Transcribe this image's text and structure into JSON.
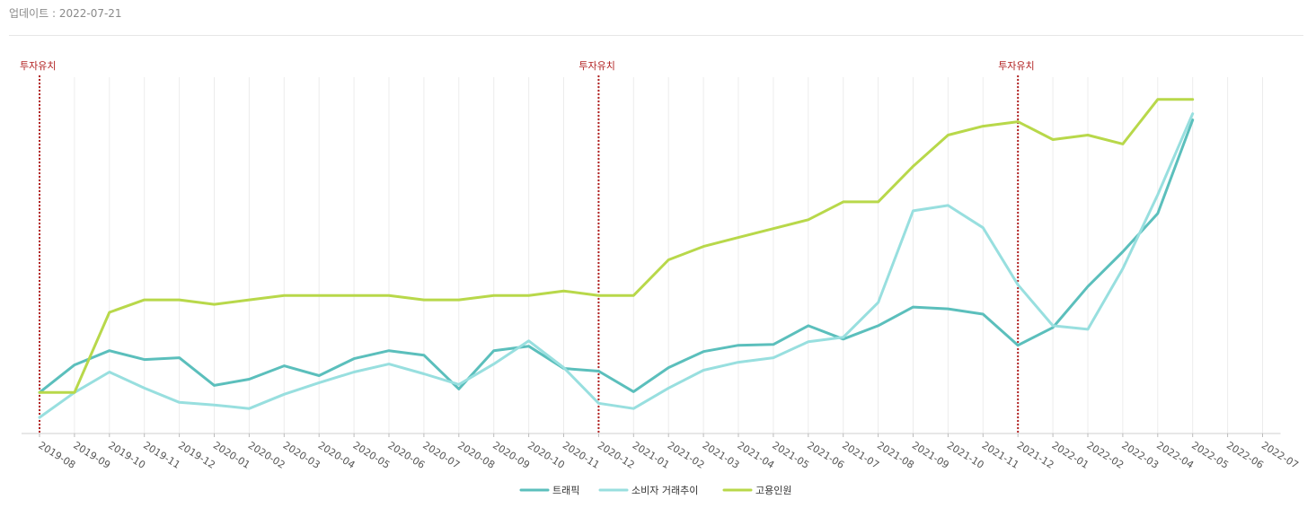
{
  "header": {
    "update_label": "업데이트 : 2022-07-21"
  },
  "chart_data": {
    "type": "line",
    "categories": [
      "2019-08",
      "2019-09",
      "2019-10",
      "2019-11",
      "2019-12",
      "2020-01",
      "2020-02",
      "2020-03",
      "2020-04",
      "2020-05",
      "2020-06",
      "2020-07",
      "2020-08",
      "2020-09",
      "2020-10",
      "2020-11",
      "2020-12",
      "2021-01",
      "2021-02",
      "2021-03",
      "2021-04",
      "2021-05",
      "2021-06",
      "2021-07",
      "2021-08",
      "2021-09",
      "2021-10",
      "2021-11",
      "2021-12",
      "2022-01",
      "2022-02",
      "2022-03",
      "2022-04",
      "2022-05",
      "2022-06",
      "2022-07"
    ],
    "series": [
      {
        "name": "트래픽",
        "color": "#5bbfbc",
        "values": [
          46,
          77,
          93,
          83,
          85,
          54,
          61,
          76,
          65,
          84,
          93,
          88,
          50,
          93,
          98,
          73,
          70,
          47,
          74,
          92,
          99,
          100,
          121,
          106,
          121,
          142,
          140,
          134,
          99,
          119,
          165,
          204,
          247,
          352,
          null,
          null
        ]
      },
      {
        "name": "소비자 거래추이",
        "color": "#98dfdf",
        "values": [
          18,
          46,
          69,
          51,
          35,
          32,
          28,
          44,
          57,
          69,
          78,
          67,
          55,
          78,
          104,
          74,
          34,
          28,
          51,
          71,
          80,
          85,
          103,
          108,
          147,
          250,
          256,
          231,
          167,
          121,
          117,
          185,
          268,
          359,
          null,
          null
        ]
      },
      {
        "name": "고용인원",
        "color": "#b8d84a",
        "values": [
          46,
          46,
          136,
          150,
          150,
          145,
          150,
          155,
          155,
          155,
          155,
          150,
          150,
          155,
          155,
          160,
          155,
          155,
          195,
          210,
          220,
          230,
          240,
          260,
          260,
          300,
          335,
          345,
          350,
          330,
          335,
          325,
          375,
          375,
          null,
          null
        ]
      }
    ],
    "markers": [
      {
        "category": "2019-08",
        "label": "투자유치"
      },
      {
        "category": "2020-12",
        "label": "투자유치"
      },
      {
        "category": "2021-12",
        "label": "투자유치"
      }
    ],
    "xlabel": "",
    "ylabel": "",
    "ylim": [
      0,
      400
    ],
    "grid": "vertical",
    "legend": "bottom-center"
  }
}
